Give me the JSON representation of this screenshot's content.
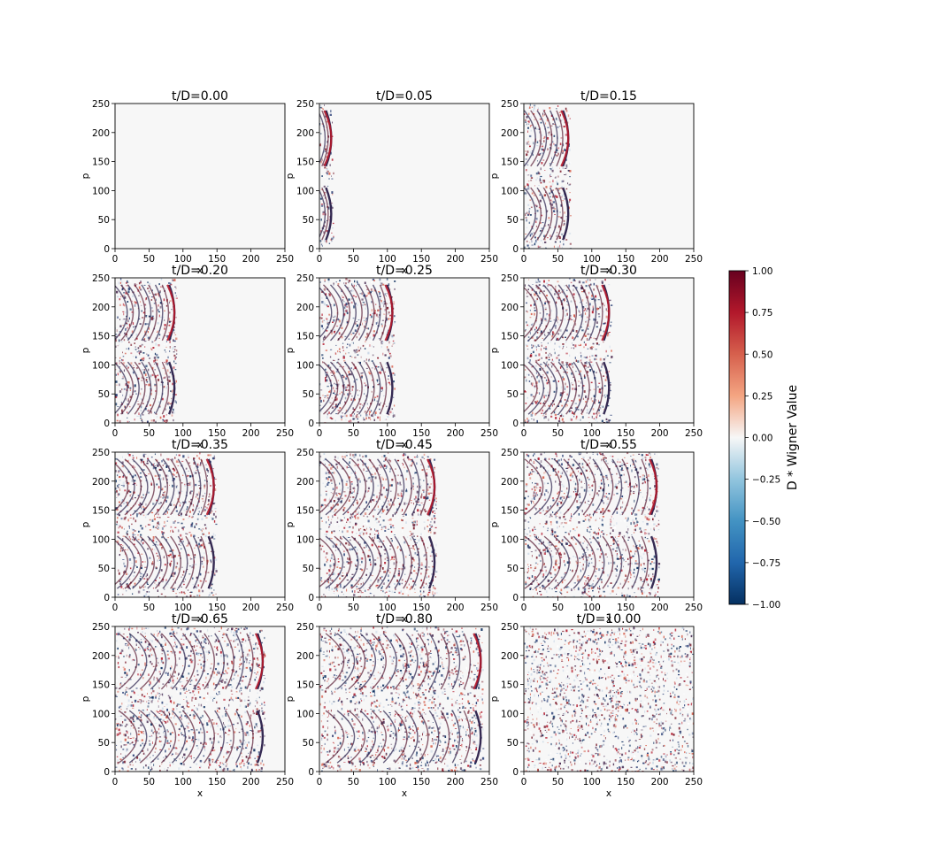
{
  "chart_data": {
    "type": "heatmap",
    "layout": {
      "rows": 4,
      "cols": 3
    },
    "xlabel": "x",
    "ylabel": "p",
    "xlim": [
      0,
      250
    ],
    "ylim": [
      0,
      250
    ],
    "xticks": [
      0,
      50,
      100,
      150,
      200,
      250
    ],
    "yticks": [
      0,
      50,
      100,
      150,
      200,
      250
    ],
    "colormap": "RdBu_r",
    "colorbar": {
      "label": "D * Wigner Value",
      "min": -1.0,
      "max": 1.0,
      "ticks": [
        "1.00",
        "0.75",
        "0.50",
        "0.25",
        "0.00",
        "−0.25",
        "−0.50",
        "−0.75",
        "−1.00"
      ],
      "tick_values": [
        1.0,
        0.75,
        0.5,
        0.25,
        0.0,
        -0.25,
        -0.5,
        -0.75,
        -1.0
      ],
      "colors": [
        "#053061",
        "#2166ac",
        "#4393c3",
        "#92c5de",
        "#f7f7f7",
        "#f4a582",
        "#d6604d",
        "#b2182b",
        "#67001f"
      ]
    },
    "panels": [
      {
        "title": "t/D=0.00",
        "front_x": 0,
        "spread": 0
      },
      {
        "title": "t/D=0.05",
        "front_x": 20,
        "spread": 0.5
      },
      {
        "title": "t/D=0.15",
        "front_x": 68,
        "spread": 1
      },
      {
        "title": "t/D=0.20",
        "front_x": 90,
        "spread": 1
      },
      {
        "title": "t/D=0.25",
        "front_x": 110,
        "spread": 1
      },
      {
        "title": "t/D=0.30",
        "front_x": 128,
        "spread": 1
      },
      {
        "title": "t/D=0.35",
        "front_x": 148,
        "spread": 1
      },
      {
        "title": "t/D=0.45",
        "front_x": 172,
        "spread": 1
      },
      {
        "title": "t/D=0.55",
        "front_x": 198,
        "spread": 1
      },
      {
        "title": "t/D=0.65",
        "front_x": 220,
        "spread": 1
      },
      {
        "title": "t/D=0.80",
        "front_x": 240,
        "spread": 1
      },
      {
        "title": "t/D=10.00",
        "front_x": 250,
        "spread": 2
      }
    ]
  }
}
